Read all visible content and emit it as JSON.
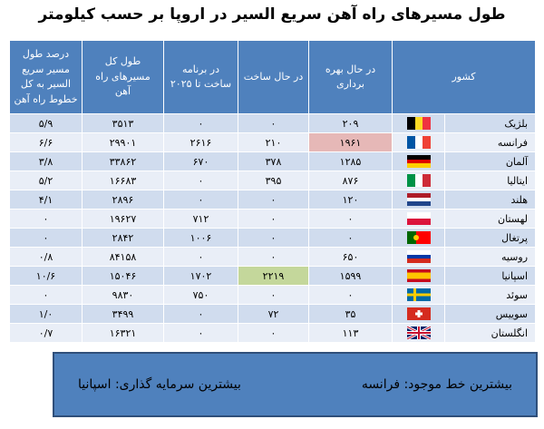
{
  "header": {
    "title": "طول مسیرهای راه آهن سریع السیر در اروپا بر حسب کیلومتر"
  },
  "table": {
    "columns": [
      "کشور",
      "در حال بهره برداری",
      "در حال ساخت",
      "در برنامه ساخت تا ۲۰۲۵",
      "طول کل مسیرهای راه آهن",
      "درصد طول مسیر سریع السیر به کل خطوط راه آهن"
    ],
    "rows": [
      [
        "بلژیک",
        "۲۰۹",
        "۰",
        "۰",
        "۳۵۱۳",
        "۵/۹"
      ],
      [
        "فرانسه",
        "۱۹۶۱",
        "۲۱۰",
        "۲۶۱۶",
        "۲۹۹۰۱",
        "۶/۶"
      ],
      [
        "آلمان",
        "۱۲۸۵",
        "۳۷۸",
        "۶۷۰",
        "۳۳۸۶۲",
        "۳/۸"
      ],
      [
        "ایتالیا",
        "۸۷۶",
        "۳۹۵",
        "۰",
        "۱۶۶۸۳",
        "۵/۲"
      ],
      [
        "هلند",
        "۱۲۰",
        "۰",
        "۰",
        "۲۸۹۶",
        "۴/۱"
      ],
      [
        "لهستان",
        "۰",
        "۰",
        "۷۱۲",
        "۱۹۶۲۷",
        "۰"
      ],
      [
        "پرتغال",
        "۰",
        "۰",
        "۱۰۰۶",
        "۲۸۴۲",
        "۰"
      ],
      [
        "روسیه",
        "۶۵۰",
        "۰",
        "۰",
        "۸۴۱۵۸",
        "۰/۸"
      ],
      [
        "اسپانیا",
        "۱۵۹۹",
        "۲۲۱۹",
        "۱۷۰۲",
        "۱۵۰۴۶",
        "۱۰/۶"
      ],
      [
        "سوئد",
        "۰",
        "۰",
        "۷۵۰",
        "۹۸۳۰",
        "۰"
      ],
      [
        "سوییس",
        "۳۵",
        "۷۲",
        "۰",
        "۳۴۹۹",
        "۱/۰"
      ],
      [
        "انگلستان",
        "۱۱۳",
        "۰",
        "۰",
        "۱۶۳۲۱",
        "۰/۷"
      ]
    ]
  },
  "summary": {
    "max_existing": "بیشترین خط موجود: فرانسه",
    "max_investment": "بیشترین سرمایه گذاری: اسپانیا"
  }
}
